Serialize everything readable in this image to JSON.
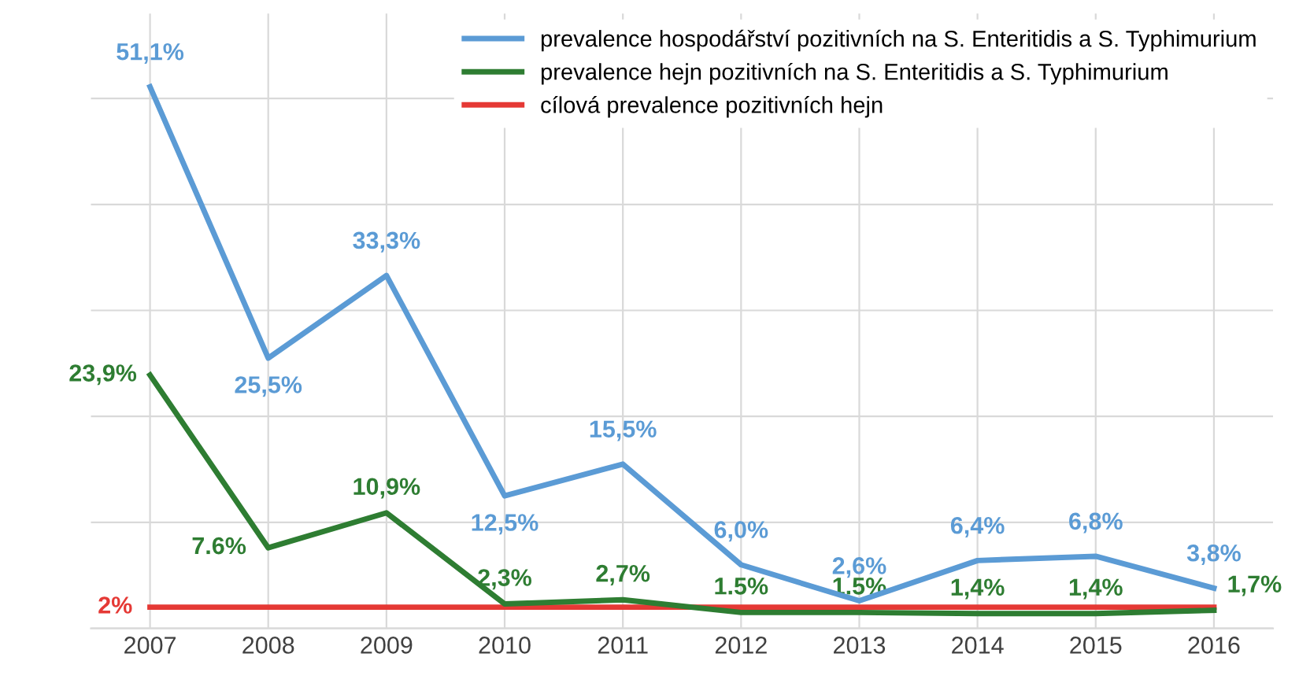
{
  "chart_data": {
    "type": "line",
    "categories": [
      "2007",
      "2008",
      "2009",
      "2010",
      "2011",
      "2012",
      "2013",
      "2014",
      "2015",
      "2016"
    ],
    "series": [
      {
        "name": "prevalence hospodářství pozitivních na S. Enteritidis a S. Typhimurium",
        "color": "#5b9bd5",
        "values": [
          51.1,
          25.5,
          33.3,
          12.5,
          15.5,
          6.0,
          2.6,
          6.4,
          6.8,
          3.8
        ],
        "value_labels": [
          "51,1%",
          "25,5%",
          "33,3%",
          "12,5%",
          "15,5%",
          "6,0%",
          "2,6%",
          "6,4%",
          "6,8%",
          "3,8%"
        ]
      },
      {
        "name": "prevalence hejn pozitivních na S. Enteritidis a S. Typhimurium",
        "color": "#2e7d32",
        "values": [
          23.9,
          7.6,
          10.9,
          2.3,
          2.7,
          1.5,
          1.5,
          1.4,
          1.4,
          1.7
        ],
        "value_labels": [
          "23,9%",
          "7.6%",
          "10,9%",
          "2,3%",
          "2,7%",
          "1.5%",
          "1.5%",
          "1,4%",
          "1,4%",
          "1,7%"
        ]
      },
      {
        "name": "cílová prevalence pozitivních hejn",
        "color": "#e53935",
        "values": [
          2,
          2,
          2,
          2,
          2,
          2,
          2,
          2,
          2,
          2
        ],
        "value_labels": [
          "2%",
          null,
          null,
          null,
          null,
          null,
          null,
          null,
          null,
          null
        ]
      }
    ],
    "ylim": [
      0,
      58
    ],
    "yticks": [
      {
        "value": 0,
        "label": null
      },
      {
        "value": 10,
        "label": null
      },
      {
        "value": 20,
        "label": null
      },
      {
        "value": 30,
        "label": null
      },
      {
        "value": 40,
        "label": null
      },
      {
        "value": 50,
        "label": null
      }
    ],
    "tick_labels": "x",
    "grid": true,
    "legend": "top right",
    "marker": "none",
    "line_style": "solid"
  }
}
